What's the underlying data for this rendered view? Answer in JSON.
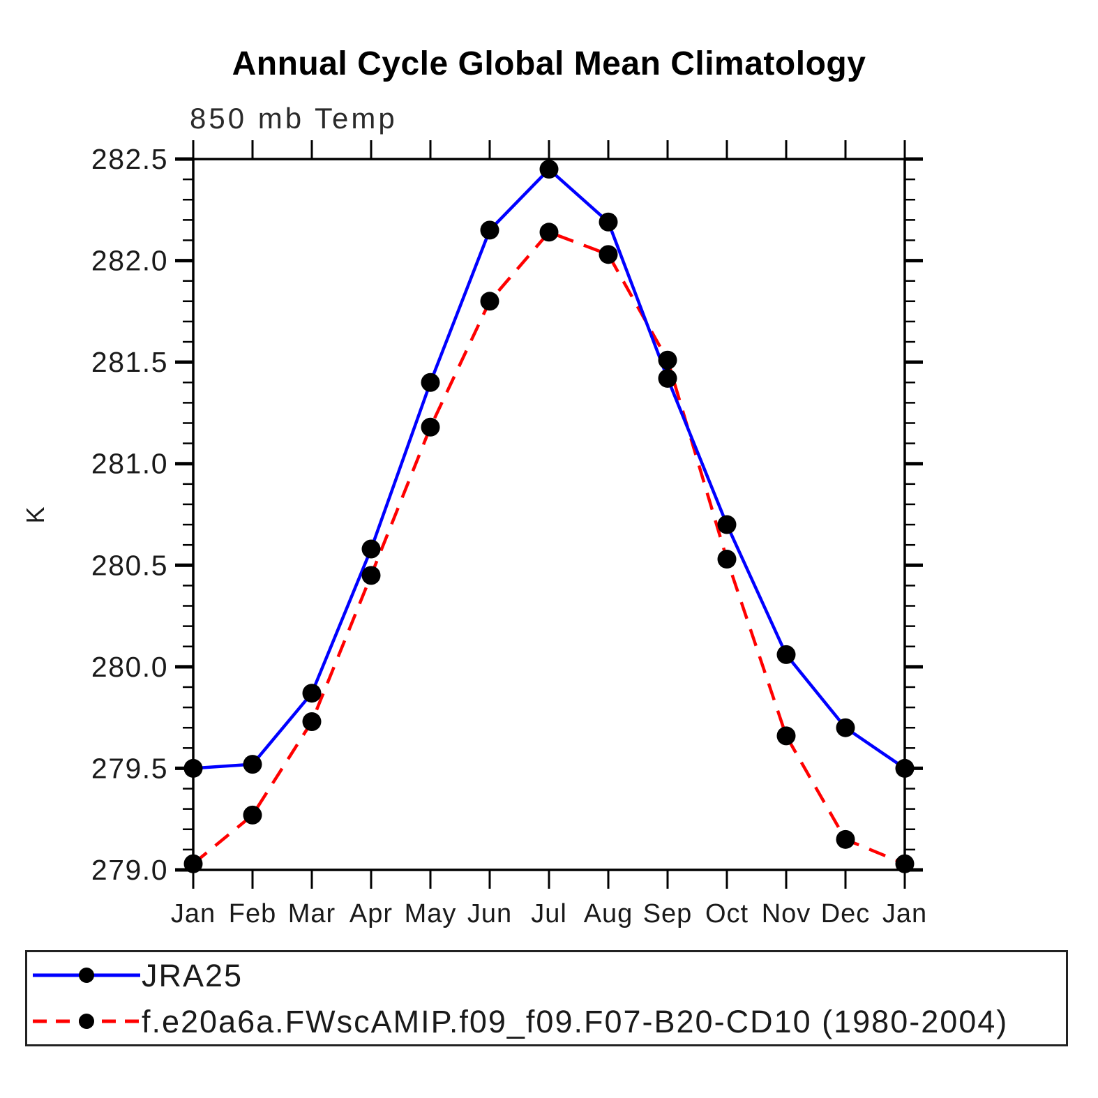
{
  "title": "Annual Cycle Global Mean Climatology",
  "subtitle": "850 mb Temp",
  "chart_data": {
    "type": "line",
    "title": "Annual Cycle Global Mean Climatology",
    "subtitle": "850 mb Temp",
    "xlabel": "",
    "ylabel": "K",
    "categories": [
      "Jan",
      "Feb",
      "Mar",
      "Apr",
      "May",
      "Jun",
      "Jul",
      "Aug",
      "Sep",
      "Oct",
      "Nov",
      "Dec",
      "Jan"
    ],
    "series": [
      {
        "name": "JRA25",
        "color": "#0000ff",
        "line_style": "solid",
        "marker": "filled-circle",
        "marker_color": "#000000",
        "values": [
          279.5,
          279.52,
          279.87,
          280.58,
          281.4,
          282.15,
          282.45,
          282.19,
          281.42,
          280.7,
          280.06,
          279.7,
          279.5
        ]
      },
      {
        "name": "f.e20a6a.FWscAMIP.f09_f09.F07-B20-CD10 (1980-2004)",
        "color": "#ff0000",
        "line_style": "dashed",
        "marker": "filled-circle",
        "marker_color": "#000000",
        "values": [
          279.03,
          279.27,
          279.73,
          280.45,
          281.18,
          281.8,
          282.14,
          282.03,
          281.51,
          280.53,
          279.66,
          279.15,
          279.03
        ]
      }
    ],
    "ylim": [
      279.0,
      282.5
    ],
    "ytick_major_interval": 0.5,
    "ytick_minor_interval": 0.1,
    "ytick_labels": [
      "279.0",
      "279.5",
      "280.0",
      "280.5",
      "281.0",
      "281.5",
      "282.0",
      "282.5"
    ],
    "grid": "off",
    "legend_position": "bottom",
    "axis_color": "#000000"
  }
}
